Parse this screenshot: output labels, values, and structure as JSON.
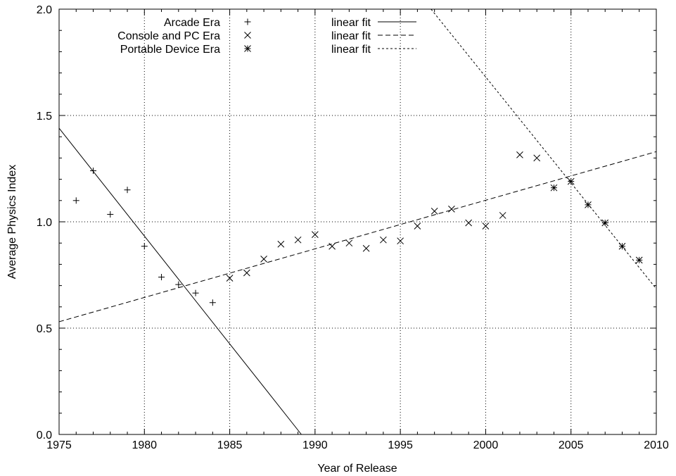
{
  "chart_data": {
    "type": "scatter",
    "xlabel": "Year of Release",
    "ylabel": "Average Physics Index",
    "xlim": [
      1975,
      2010
    ],
    "ylim": [
      0.0,
      2.0
    ],
    "x_ticks": [
      1975,
      1980,
      1985,
      1990,
      1995,
      2000,
      2005,
      2010
    ],
    "y_ticks": [
      0.0,
      0.5,
      1.0,
      1.5,
      2.0
    ],
    "x_tick_labels": [
      "1975",
      "1980",
      "1985",
      "1990",
      "1995",
      "2000",
      "2005",
      "2010"
    ],
    "y_tick_labels": [
      "0.0",
      "0.5",
      "1.0",
      "1.5",
      "2.0"
    ],
    "grid": true,
    "legend_position": "top",
    "series": [
      {
        "name": "Arcade Era",
        "marker": "plus",
        "points": [
          [
            1976,
            1.1
          ],
          [
            1977,
            1.24
          ],
          [
            1978,
            1.035
          ],
          [
            1979,
            1.15
          ],
          [
            1980,
            0.885
          ],
          [
            1981,
            0.74
          ],
          [
            1982,
            0.705
          ],
          [
            1983,
            0.665
          ],
          [
            1984,
            0.62
          ]
        ]
      },
      {
        "name": "Console and PC Era",
        "marker": "cross",
        "points": [
          [
            1985,
            0.735
          ],
          [
            1986,
            0.76
          ],
          [
            1987,
            0.825
          ],
          [
            1988,
            0.895
          ],
          [
            1989,
            0.915
          ],
          [
            1990,
            0.94
          ],
          [
            1991,
            0.885
          ],
          [
            1992,
            0.9
          ],
          [
            1993,
            0.875
          ],
          [
            1994,
            0.915
          ],
          [
            1995,
            0.91
          ],
          [
            1996,
            0.98
          ],
          [
            1997,
            1.05
          ],
          [
            1998,
            1.06
          ],
          [
            1999,
            0.995
          ],
          [
            2000,
            0.98
          ],
          [
            2001,
            1.03
          ],
          [
            2002,
            1.315
          ],
          [
            2003,
            1.3
          ]
        ]
      },
      {
        "name": "Portable Device Era",
        "marker": "star",
        "points": [
          [
            2004,
            1.16
          ],
          [
            2005,
            1.19
          ],
          [
            2006,
            1.08
          ],
          [
            2007,
            0.995
          ],
          [
            2008,
            0.885
          ],
          [
            2009,
            0.82
          ]
        ]
      }
    ],
    "fits": [
      {
        "name": "linear fit",
        "style": "solid",
        "from": [
          1975,
          1.44
        ],
        "to": [
          1989.2,
          0.0
        ]
      },
      {
        "name": "linear fit",
        "style": "dashed",
        "from": [
          1975,
          0.53
        ],
        "to": [
          2010,
          1.33
        ]
      },
      {
        "name": "linear fit",
        "style": "dotted",
        "from": [
          1996.8,
          2.0
        ],
        "to": [
          2010,
          0.685
        ]
      }
    ]
  }
}
